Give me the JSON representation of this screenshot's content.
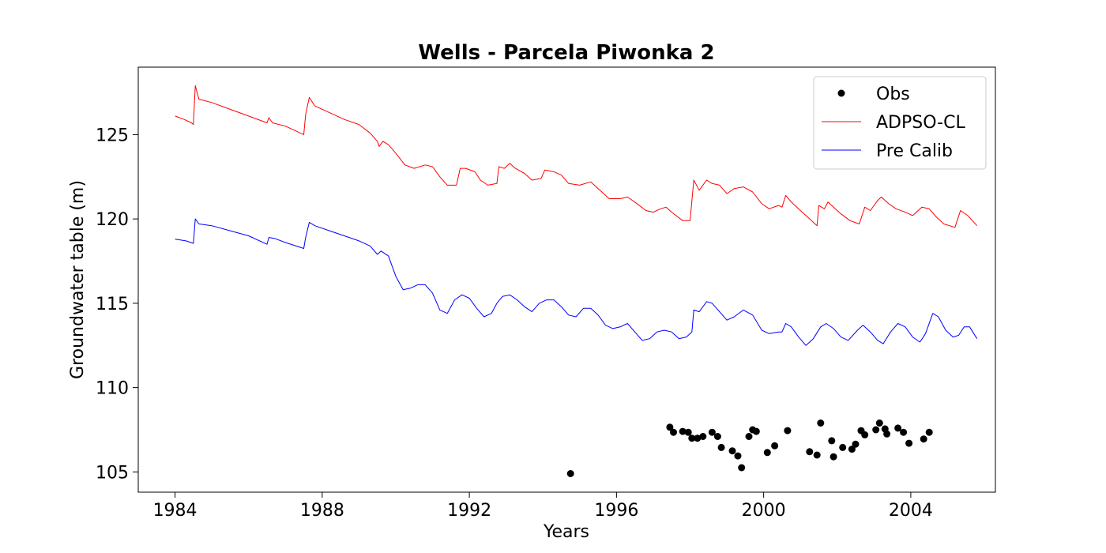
{
  "chart_data": {
    "type": "line",
    "title": "Wells - Parcela Piwonka 2",
    "xlabel": "Years",
    "ylabel": "Groundwater table (m)",
    "xlim": [
      1983.0,
      2006.3
    ],
    "ylim": [
      103.8,
      129.0
    ],
    "xticks": [
      1984,
      1988,
      1992,
      1996,
      2000,
      2004
    ],
    "yticks": [
      105,
      110,
      115,
      120,
      125
    ],
    "grid": false,
    "legend_position": "top-right",
    "series": [
      {
        "name": "Obs",
        "kind": "scatter",
        "color": "#000000",
        "points": [
          [
            1994.75,
            104.9
          ],
          [
            1997.45,
            107.65
          ],
          [
            1997.55,
            107.35
          ],
          [
            1997.8,
            107.4
          ],
          [
            1997.95,
            107.35
          ],
          [
            1998.05,
            107.0
          ],
          [
            1998.2,
            107.0
          ],
          [
            1998.35,
            107.1
          ],
          [
            1998.6,
            107.35
          ],
          [
            1998.75,
            107.1
          ],
          [
            1998.85,
            106.45
          ],
          [
            1999.15,
            106.25
          ],
          [
            1999.3,
            105.95
          ],
          [
            1999.4,
            105.25
          ],
          [
            1999.6,
            107.1
          ],
          [
            1999.7,
            107.5
          ],
          [
            1999.8,
            107.4
          ],
          [
            2000.1,
            106.15
          ],
          [
            2000.3,
            106.55
          ],
          [
            2000.65,
            107.45
          ],
          [
            2001.25,
            106.2
          ],
          [
            2001.45,
            106.0
          ],
          [
            2001.55,
            107.9
          ],
          [
            2001.85,
            106.85
          ],
          [
            2001.9,
            105.9
          ],
          [
            2002.15,
            106.45
          ],
          [
            2002.4,
            106.35
          ],
          [
            2002.5,
            106.65
          ],
          [
            2002.65,
            107.45
          ],
          [
            2002.75,
            107.2
          ],
          [
            2003.05,
            107.5
          ],
          [
            2003.15,
            107.9
          ],
          [
            2003.3,
            107.55
          ],
          [
            2003.35,
            107.25
          ],
          [
            2003.65,
            107.6
          ],
          [
            2003.8,
            107.35
          ],
          [
            2003.95,
            106.7
          ],
          [
            2004.35,
            106.95
          ],
          [
            2004.5,
            107.35
          ]
        ]
      },
      {
        "name": "ADPSO-CL",
        "kind": "line",
        "color": "#ff0000",
        "points": [
          [
            1984.0,
            126.1
          ],
          [
            1984.25,
            125.9
          ],
          [
            1984.45,
            125.7
          ],
          [
            1984.5,
            125.6
          ],
          [
            1984.55,
            127.9
          ],
          [
            1984.65,
            127.1
          ],
          [
            1985.0,
            126.9
          ],
          [
            1985.5,
            126.5
          ],
          [
            1986.0,
            126.1
          ],
          [
            1986.5,
            125.7
          ],
          [
            1986.55,
            126.0
          ],
          [
            1986.65,
            125.7
          ],
          [
            1987.0,
            125.5
          ],
          [
            1987.3,
            125.2
          ],
          [
            1987.5,
            125.0
          ],
          [
            1987.55,
            126.2
          ],
          [
            1987.65,
            127.2
          ],
          [
            1987.8,
            126.7
          ],
          [
            1988.2,
            126.3
          ],
          [
            1988.6,
            125.9
          ],
          [
            1989.0,
            125.6
          ],
          [
            1989.3,
            125.1
          ],
          [
            1989.5,
            124.6
          ],
          [
            1989.55,
            124.3
          ],
          [
            1989.65,
            124.6
          ],
          [
            1989.8,
            124.4
          ],
          [
            1990.0,
            123.9
          ],
          [
            1990.25,
            123.2
          ],
          [
            1990.5,
            123.0
          ],
          [
            1990.8,
            123.2
          ],
          [
            1991.0,
            123.1
          ],
          [
            1991.2,
            122.5
          ],
          [
            1991.4,
            122.0
          ],
          [
            1991.65,
            122.0
          ],
          [
            1991.75,
            123.0
          ],
          [
            1991.9,
            123.0
          ],
          [
            1992.15,
            122.8
          ],
          [
            1992.3,
            122.3
          ],
          [
            1992.5,
            122.0
          ],
          [
            1992.75,
            122.1
          ],
          [
            1992.8,
            123.1
          ],
          [
            1992.95,
            123.0
          ],
          [
            1993.1,
            123.3
          ],
          [
            1993.25,
            123.0
          ],
          [
            1993.5,
            122.7
          ],
          [
            1993.7,
            122.3
          ],
          [
            1993.95,
            122.4
          ],
          [
            1994.05,
            122.9
          ],
          [
            1994.3,
            122.8
          ],
          [
            1994.5,
            122.6
          ],
          [
            1994.7,
            122.1
          ],
          [
            1995.0,
            122.0
          ],
          [
            1995.3,
            122.2
          ],
          [
            1995.5,
            121.8
          ],
          [
            1995.8,
            121.2
          ],
          [
            1996.1,
            121.2
          ],
          [
            1996.3,
            121.3
          ],
          [
            1996.5,
            121.0
          ],
          [
            1996.8,
            120.5
          ],
          [
            1997.0,
            120.4
          ],
          [
            1997.2,
            120.6
          ],
          [
            1997.35,
            120.7
          ],
          [
            1997.5,
            120.4
          ],
          [
            1997.8,
            119.9
          ],
          [
            1998.0,
            119.9
          ],
          [
            1998.1,
            122.3
          ],
          [
            1998.25,
            121.7
          ],
          [
            1998.45,
            122.3
          ],
          [
            1998.6,
            122.1
          ],
          [
            1998.8,
            122.0
          ],
          [
            1999.0,
            121.5
          ],
          [
            1999.2,
            121.8
          ],
          [
            1999.45,
            121.9
          ],
          [
            1999.7,
            121.6
          ],
          [
            1999.95,
            120.9
          ],
          [
            2000.15,
            120.6
          ],
          [
            2000.4,
            120.8
          ],
          [
            2000.5,
            120.7
          ],
          [
            2000.6,
            121.4
          ],
          [
            2000.75,
            121.0
          ],
          [
            2001.0,
            120.5
          ],
          [
            2001.3,
            119.9
          ],
          [
            2001.45,
            119.6
          ],
          [
            2001.5,
            120.8
          ],
          [
            2001.65,
            120.6
          ],
          [
            2001.75,
            121.0
          ],
          [
            2001.9,
            120.7
          ],
          [
            2002.1,
            120.3
          ],
          [
            2002.35,
            119.9
          ],
          [
            2002.6,
            119.7
          ],
          [
            2002.75,
            120.7
          ],
          [
            2002.9,
            120.5
          ],
          [
            2003.1,
            121.1
          ],
          [
            2003.2,
            121.3
          ],
          [
            2003.4,
            120.9
          ],
          [
            2003.6,
            120.6
          ],
          [
            2003.85,
            120.4
          ],
          [
            2004.05,
            120.2
          ],
          [
            2004.3,
            120.7
          ],
          [
            2004.5,
            120.6
          ],
          [
            2004.7,
            120.1
          ],
          [
            2004.9,
            119.7
          ],
          [
            2005.2,
            119.5
          ],
          [
            2005.35,
            120.5
          ],
          [
            2005.55,
            120.2
          ],
          [
            2005.8,
            119.6
          ]
        ]
      },
      {
        "name": "Pre Calib",
        "kind": "line",
        "color": "#0000ff",
        "points": [
          [
            1984.0,
            118.8
          ],
          [
            1984.3,
            118.7
          ],
          [
            1984.5,
            118.55
          ],
          [
            1984.55,
            120.0
          ],
          [
            1984.65,
            119.7
          ],
          [
            1985.0,
            119.6
          ],
          [
            1985.5,
            119.3
          ],
          [
            1986.0,
            119.0
          ],
          [
            1986.5,
            118.5
          ],
          [
            1986.55,
            118.9
          ],
          [
            1986.7,
            118.85
          ],
          [
            1987.0,
            118.6
          ],
          [
            1987.5,
            118.25
          ],
          [
            1987.55,
            118.9
          ],
          [
            1987.65,
            119.8
          ],
          [
            1987.8,
            119.6
          ],
          [
            1988.2,
            119.3
          ],
          [
            1988.6,
            119.0
          ],
          [
            1989.0,
            118.7
          ],
          [
            1989.3,
            118.4
          ],
          [
            1989.5,
            117.9
          ],
          [
            1989.6,
            118.1
          ],
          [
            1989.8,
            117.8
          ],
          [
            1990.0,
            116.6
          ],
          [
            1990.2,
            115.8
          ],
          [
            1990.4,
            115.9
          ],
          [
            1990.6,
            116.1
          ],
          [
            1990.8,
            116.1
          ],
          [
            1991.0,
            115.6
          ],
          [
            1991.2,
            114.6
          ],
          [
            1991.4,
            114.4
          ],
          [
            1991.6,
            115.2
          ],
          [
            1991.8,
            115.5
          ],
          [
            1992.0,
            115.3
          ],
          [
            1992.2,
            114.7
          ],
          [
            1992.4,
            114.2
          ],
          [
            1992.6,
            114.4
          ],
          [
            1992.75,
            115.0
          ],
          [
            1992.9,
            115.4
          ],
          [
            1993.1,
            115.5
          ],
          [
            1993.3,
            115.2
          ],
          [
            1993.5,
            114.8
          ],
          [
            1993.7,
            114.5
          ],
          [
            1993.9,
            115.0
          ],
          [
            1994.1,
            115.2
          ],
          [
            1994.3,
            115.2
          ],
          [
            1994.5,
            114.8
          ],
          [
            1994.7,
            114.3
          ],
          [
            1994.9,
            114.2
          ],
          [
            1995.1,
            114.7
          ],
          [
            1995.3,
            114.7
          ],
          [
            1995.5,
            114.3
          ],
          [
            1995.7,
            113.7
          ],
          [
            1995.9,
            113.5
          ],
          [
            1996.1,
            113.6
          ],
          [
            1996.3,
            113.8
          ],
          [
            1996.5,
            113.3
          ],
          [
            1996.7,
            112.8
          ],
          [
            1996.9,
            112.9
          ],
          [
            1997.1,
            113.3
          ],
          [
            1997.3,
            113.4
          ],
          [
            1997.5,
            113.3
          ],
          [
            1997.7,
            112.9
          ],
          [
            1997.9,
            113.0
          ],
          [
            1998.05,
            113.3
          ],
          [
            1998.1,
            114.6
          ],
          [
            1998.25,
            114.5
          ],
          [
            1998.45,
            115.1
          ],
          [
            1998.6,
            115.0
          ],
          [
            1998.8,
            114.5
          ],
          [
            1999.0,
            114.0
          ],
          [
            1999.2,
            114.2
          ],
          [
            1999.45,
            114.6
          ],
          [
            1999.7,
            114.3
          ],
          [
            1999.95,
            113.4
          ],
          [
            2000.15,
            113.2
          ],
          [
            2000.4,
            113.3
          ],
          [
            2000.5,
            113.3
          ],
          [
            2000.6,
            113.8
          ],
          [
            2000.75,
            113.6
          ],
          [
            2000.95,
            113.0
          ],
          [
            2001.15,
            112.5
          ],
          [
            2001.35,
            112.9
          ],
          [
            2001.55,
            113.6
          ],
          [
            2001.7,
            113.8
          ],
          [
            2001.9,
            113.5
          ],
          [
            2002.1,
            113.0
          ],
          [
            2002.3,
            112.8
          ],
          [
            2002.55,
            113.4
          ],
          [
            2002.7,
            113.7
          ],
          [
            2002.9,
            113.3
          ],
          [
            2003.1,
            112.8
          ],
          [
            2003.25,
            112.6
          ],
          [
            2003.45,
            113.3
          ],
          [
            2003.65,
            113.8
          ],
          [
            2003.85,
            113.6
          ],
          [
            2004.05,
            113.0
          ],
          [
            2004.25,
            112.7
          ],
          [
            2004.4,
            113.2
          ],
          [
            2004.6,
            114.4
          ],
          [
            2004.75,
            114.2
          ],
          [
            2004.95,
            113.4
          ],
          [
            2005.15,
            113.0
          ],
          [
            2005.3,
            113.1
          ],
          [
            2005.45,
            113.6
          ],
          [
            2005.6,
            113.6
          ],
          [
            2005.8,
            112.9
          ]
        ]
      }
    ]
  }
}
